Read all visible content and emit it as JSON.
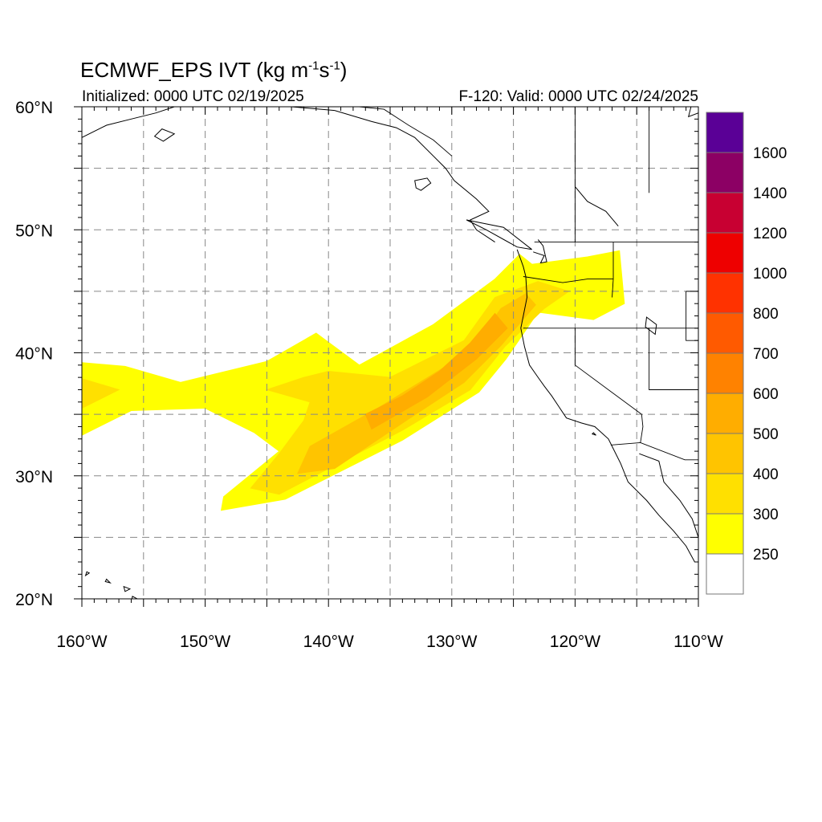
{
  "title": {
    "text": "ECMWF_EPS IVT (kg m",
    "sup1": "-1",
    "mid": "s",
    "sup2": "-1",
    "end": ")"
  },
  "init_text": "Initialized: 0000 UTC 02/19/2025",
  "valid_text": "F-120: Valid: 0000 UTC 02/24/2025",
  "map": {
    "lon_range": [
      -160,
      -110
    ],
    "lat_range": [
      20,
      60
    ],
    "grid": true,
    "lon_ticks": [
      {
        "value": -160,
        "label": "160°W"
      },
      {
        "value": -150,
        "label": "150°W"
      },
      {
        "value": -140,
        "label": "140°W"
      },
      {
        "value": -130,
        "label": "130°W"
      },
      {
        "value": -120,
        "label": "120°W"
      },
      {
        "value": -110,
        "label": "110°W"
      }
    ],
    "lat_ticks": [
      {
        "value": 20,
        "label": "20°N"
      },
      {
        "value": 30,
        "label": "30°N"
      },
      {
        "value": 40,
        "label": "40°N"
      },
      {
        "value": 50,
        "label": "50°N"
      },
      {
        "value": 60,
        "label": "60°N"
      }
    ],
    "ivt_bands": [
      {
        "level": 250,
        "color": "#ffff00",
        "polygon": [
          [
            -160,
            39.2
          ],
          [
            -156.5,
            38.9
          ],
          [
            -152,
            37.6
          ],
          [
            -145,
            39.3
          ],
          [
            -141,
            41.6
          ],
          [
            -137.5,
            39
          ],
          [
            -131.5,
            42.3
          ],
          [
            -126.5,
            46
          ],
          [
            -124.5,
            48
          ],
          [
            -123.5,
            47.2
          ],
          [
            -119,
            47.8
          ],
          [
            -116.4,
            48.3
          ],
          [
            -116,
            44
          ],
          [
            -118.5,
            42.7
          ],
          [
            -123,
            43.3
          ],
          [
            -125.6,
            39.5
          ],
          [
            -127.8,
            36.8
          ],
          [
            -134,
            32.9
          ],
          [
            -143.5,
            28.1
          ],
          [
            -148.7,
            27.2
          ],
          [
            -148.5,
            28.3
          ],
          [
            -144,
            32
          ],
          [
            -146,
            33.5
          ],
          [
            -150,
            35.5
          ],
          [
            -156,
            35.3
          ],
          [
            -160,
            33.3
          ]
        ]
      },
      {
        "level": 300,
        "color": "#ffe000",
        "polygon": [
          [
            -160,
            37.9
          ],
          [
            -157,
            37
          ],
          [
            -160,
            35.5
          ]
        ]
      },
      {
        "level": 300,
        "color": "#ffe000",
        "polygon": [
          [
            -145,
            37
          ],
          [
            -142,
            38
          ],
          [
            -140,
            38.5
          ],
          [
            -135,
            38
          ],
          [
            -129,
            41
          ],
          [
            -126.5,
            44.5
          ],
          [
            -123,
            45.8
          ],
          [
            -120.5,
            45
          ],
          [
            -122.5,
            43.6
          ],
          [
            -125.7,
            40.5
          ],
          [
            -128.5,
            37
          ],
          [
            -134,
            33.7
          ],
          [
            -144,
            28.5
          ],
          [
            -146.3,
            29
          ],
          [
            -144,
            31.8
          ],
          [
            -142,
            34.5
          ],
          [
            -141.5,
            36
          ]
        ]
      },
      {
        "level": 400,
        "color": "#ffc400",
        "polygon": [
          [
            -141.5,
            32.4
          ],
          [
            -136,
            35.5
          ],
          [
            -130,
            39.2
          ],
          [
            -127.5,
            41.5
          ],
          [
            -126,
            43.6
          ],
          [
            -124,
            44.8
          ],
          [
            -123.2,
            43.9
          ],
          [
            -126,
            40.6
          ],
          [
            -129,
            37.6
          ],
          [
            -134,
            34.3
          ],
          [
            -139.5,
            30.6
          ],
          [
            -142.5,
            30.2
          ]
        ]
      },
      {
        "level": 500,
        "color": "#ffad00",
        "polygon": [
          [
            -137,
            35
          ],
          [
            -134,
            36.5
          ],
          [
            -131,
            38.5
          ],
          [
            -128.5,
            40.8
          ],
          [
            -126.5,
            43.2
          ],
          [
            -125.5,
            42
          ],
          [
            -128,
            39.5
          ],
          [
            -132,
            36.4
          ],
          [
            -136.5,
            33.8
          ]
        ]
      }
    ],
    "colorbar": [
      {
        "label": "",
        "color": "#ffffff"
      },
      {
        "label": "250",
        "color": "#ffff00"
      },
      {
        "label": "300",
        "color": "#ffe000"
      },
      {
        "label": "400",
        "color": "#ffc400"
      },
      {
        "label": "500",
        "color": "#ffad00"
      },
      {
        "label": "600",
        "color": "#ff8200"
      },
      {
        "label": "700",
        "color": "#ff5a00"
      },
      {
        "label": "800",
        "color": "#ff3200"
      },
      {
        "label": "1000",
        "color": "#ee0000"
      },
      {
        "label": "1200",
        "color": "#c80032"
      },
      {
        "label": "1400",
        "color": "#8c0064"
      },
      {
        "label": "1600",
        "color": "#5a0096"
      }
    ],
    "coastlines": [
      [
        [
          -126.5,
          49
        ],
        [
          -128,
          50
        ],
        [
          -128.5,
          50.8
        ],
        [
          -127,
          51.5
        ],
        [
          -128,
          52.5
        ],
        [
          -129.8,
          54
        ],
        [
          -130.5,
          55
        ],
        [
          -131.5,
          56
        ],
        [
          -133,
          57.5
        ],
        [
          -134.5,
          58.3
        ],
        [
          -136.5,
          58.8
        ],
        [
          -139.5,
          59.7
        ],
        [
          -143,
          60
        ]
      ],
      [
        [
          -124.7,
          48.4
        ],
        [
          -124.2,
          47
        ],
        [
          -124,
          46.2
        ],
        [
          -123.9,
          44.5
        ],
        [
          -124.2,
          43
        ],
        [
          -124.4,
          42
        ],
        [
          -124.1,
          40.5
        ],
        [
          -123.7,
          39
        ],
        [
          -123,
          38
        ],
        [
          -122.5,
          37.3
        ],
        [
          -121.9,
          36.5
        ],
        [
          -121.3,
          35.6
        ],
        [
          -120.7,
          34.7
        ],
        [
          -119.5,
          34.3
        ],
        [
          -118.4,
          34
        ],
        [
          -117.3,
          33
        ],
        [
          -117,
          32.4
        ],
        [
          -116.3,
          31
        ],
        [
          -115.7,
          29.5
        ],
        [
          -114.2,
          28
        ],
        [
          -113.2,
          26.8
        ],
        [
          -112,
          25.5
        ],
        [
          -111,
          24.3
        ],
        [
          -110.3,
          23
        ]
      ],
      [
        [
          -114.8,
          31.8
        ],
        [
          -113.2,
          31.2
        ],
        [
          -112.8,
          29.5
        ],
        [
          -111.5,
          28
        ],
        [
          -110.5,
          26.5
        ],
        [
          -110,
          25
        ]
      ],
      [
        [
          -123.4,
          48.2
        ],
        [
          -122.5,
          47.9
        ],
        [
          -122.8,
          47.3
        ],
        [
          -122.3,
          47.4
        ],
        [
          -122.6,
          48.7
        ],
        [
          -123,
          49.2
        ]
      ],
      [
        [
          -160,
          57.5
        ],
        [
          -158,
          58.5
        ],
        [
          -156,
          59
        ],
        [
          -154,
          59.5
        ],
        [
          -152.5,
          60
        ]
      ],
      [
        [
          -110,
          59.5
        ],
        [
          -110.8,
          59.2
        ],
        [
          -110.6,
          60
        ]
      ],
      [
        [
          -120,
          53.5
        ],
        [
          -119,
          52.3
        ],
        [
          -117.5,
          51.5
        ],
        [
          -116.5,
          50.3
        ]
      ]
    ],
    "borders": [
      [
        [
          -123.3,
          49
        ],
        [
          -110,
          49
        ]
      ],
      [
        [
          -124.2,
          46.2
        ],
        [
          -121,
          45.7
        ],
        [
          -119,
          46
        ],
        [
          -116.9,
          46
        ]
      ],
      [
        [
          -116.9,
          46
        ],
        [
          -116.9,
          49
        ]
      ],
      [
        [
          -124.2,
          42
        ],
        [
          -110,
          42
        ]
      ],
      [
        [
          -117,
          44.5
        ],
        [
          -116.9,
          46
        ]
      ],
      [
        [
          -120,
          42
        ],
        [
          -120,
          39
        ],
        [
          -114.6,
          35
        ]
      ],
      [
        [
          -114.6,
          35
        ],
        [
          -114.5,
          34
        ],
        [
          -114.7,
          32.7
        ]
      ],
      [
        [
          -117.1,
          32.5
        ],
        [
          -114.7,
          32.7
        ],
        [
          -111.1,
          31.3
        ],
        [
          -110,
          31.3
        ]
      ],
      [
        [
          -114,
          42
        ],
        [
          -114,
          37
        ],
        [
          -110,
          37
        ]
      ],
      [
        [
          -111,
          45
        ],
        [
          -110,
          45
        ]
      ],
      [
        [
          -111,
          45
        ],
        [
          -111,
          41
        ],
        [
          -110,
          41
        ]
      ],
      [
        [
          -120,
          60
        ],
        [
          -120,
          49
        ]
      ],
      [
        [
          -114,
          60
        ],
        [
          -114,
          53
        ]
      ],
      [
        [
          -130,
          56
        ],
        [
          -131.5,
          57.3
        ],
        [
          -133.5,
          58.5
        ],
        [
          -135.5,
          59.8
        ],
        [
          -137.5,
          60
        ]
      ]
    ],
    "islands": [
      [
        [
          -153.4,
          57.2
        ],
        [
          -152.5,
          57.8
        ],
        [
          -153.5,
          58.2
        ],
        [
          -154.1,
          57.6
        ]
      ],
      [
        [
          -132.5,
          53.2
        ],
        [
          -131.7,
          53.8
        ],
        [
          -132,
          54.2
        ],
        [
          -133,
          54
        ],
        [
          -132.9,
          53.4
        ]
      ],
      [
        [
          -128.8,
          50.8
        ],
        [
          -125.8,
          50.2
        ],
        [
          -123.5,
          48.4
        ],
        [
          -124.7,
          48.6
        ],
        [
          -127.2,
          50
        ]
      ],
      [
        [
          -155.5,
          19.5
        ],
        [
          -155.5,
          20
        ],
        [
          -155.9,
          20.2
        ],
        [
          -156,
          19.7
        ]
      ],
      [
        [
          -156.5,
          20.6
        ],
        [
          -156.1,
          20.8
        ],
        [
          -156.6,
          21
        ]
      ],
      [
        [
          -158.1,
          21.4
        ],
        [
          -157.7,
          21.3
        ],
        [
          -158,
          21.6
        ]
      ],
      [
        [
          -159.7,
          21.9
        ],
        [
          -159.4,
          22.1
        ],
        [
          -159.6,
          22.2
        ]
      ],
      [
        [
          -118.6,
          33.4
        ],
        [
          -118.3,
          33.3
        ],
        [
          -118.5,
          33.5
        ]
      ],
      [
        [
          -114.2,
          42.9
        ],
        [
          -113.4,
          42.3
        ],
        [
          -113.5,
          41.5
        ],
        [
          -114.3,
          42.1
        ]
      ]
    ]
  }
}
